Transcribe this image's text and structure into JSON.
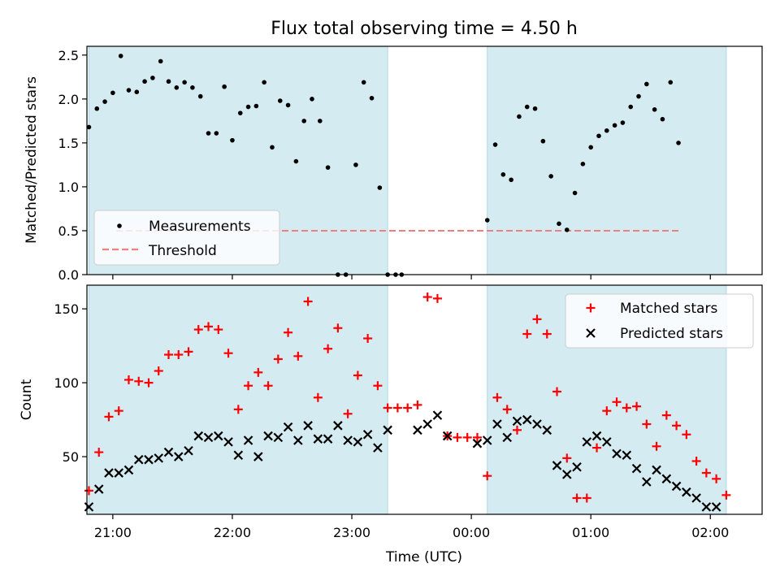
{
  "chart_data": [
    {
      "type": "scatter",
      "title": "Flux total observing time = 4.50 h",
      "xlabel": "",
      "ylabel": "Matched/Predicted stars",
      "ylim": [
        0,
        2.6
      ],
      "xlim": [
        "20:47",
        "02:26"
      ],
      "y_ticks": [
        "0.0",
        "0.5",
        "1.0",
        "1.5",
        "2.0",
        "2.5"
      ],
      "legend_position": "bottom-left",
      "shaded_intervals": [
        [
          "20:48",
          "23:18"
        ],
        [
          "00:08",
          "02:08"
        ]
      ],
      "shade_color": "#add8e6",
      "threshold": {
        "name": "Threshold",
        "value": 0.5,
        "color": "#f08080",
        "style": "dashed"
      },
      "series": [
        {
          "name": "Measurements",
          "marker": "dot",
          "color": "#000000",
          "points": [
            [
              "20:48",
              1.68
            ],
            [
              "20:52",
              1.89
            ],
            [
              "20:56",
              1.97
            ],
            [
              "21:00",
              2.07
            ],
            [
              "21:04",
              2.49
            ],
            [
              "21:08",
              2.1
            ],
            [
              "21:12",
              2.08
            ],
            [
              "21:16",
              2.2
            ],
            [
              "21:20",
              2.24
            ],
            [
              "21:24",
              2.43
            ],
            [
              "21:28",
              2.2
            ],
            [
              "21:32",
              2.13
            ],
            [
              "21:36",
              2.19
            ],
            [
              "21:40",
              2.13
            ],
            [
              "21:44",
              2.03
            ],
            [
              "21:48",
              1.61
            ],
            [
              "21:52",
              1.61
            ],
            [
              "21:56",
              2.14
            ],
            [
              "22:00",
              1.53
            ],
            [
              "22:04",
              1.84
            ],
            [
              "22:08",
              1.91
            ],
            [
              "22:12",
              1.92
            ],
            [
              "22:16",
              2.19
            ],
            [
              "22:20",
              1.45
            ],
            [
              "22:24",
              1.98
            ],
            [
              "22:28",
              1.93
            ],
            [
              "22:32",
              1.29
            ],
            [
              "22:36",
              1.75
            ],
            [
              "22:40",
              2.0
            ],
            [
              "22:44",
              1.75
            ],
            [
              "22:48",
              1.22
            ],
            [
              "22:53",
              0.0
            ],
            [
              "22:57",
              0.0
            ],
            [
              "23:02",
              1.25
            ],
            [
              "23:06",
              2.19
            ],
            [
              "23:10",
              2.01
            ],
            [
              "23:14",
              0.99
            ],
            [
              "23:18",
              0.0
            ],
            [
              "23:22",
              0.0
            ],
            [
              "23:25",
              0.0
            ],
            [
              "00:08",
              0.62
            ],
            [
              "00:12",
              1.48
            ],
            [
              "00:16",
              1.14
            ],
            [
              "00:20",
              1.08
            ],
            [
              "00:24",
              1.8
            ],
            [
              "00:28",
              1.91
            ],
            [
              "00:32",
              1.89
            ],
            [
              "00:36",
              1.52
            ],
            [
              "00:40",
              1.12
            ],
            [
              "00:44",
              0.58
            ],
            [
              "00:48",
              0.51
            ],
            [
              "00:52",
              0.93
            ],
            [
              "00:56",
              1.26
            ],
            [
              "01:00",
              1.45
            ],
            [
              "01:04",
              1.58
            ],
            [
              "01:08",
              1.64
            ],
            [
              "01:12",
              1.7
            ],
            [
              "01:16",
              1.73
            ],
            [
              "01:20",
              1.91
            ],
            [
              "01:24",
              2.03
            ],
            [
              "01:28",
              2.17
            ],
            [
              "01:32",
              1.88
            ],
            [
              "01:36",
              1.77
            ],
            [
              "01:40",
              2.19
            ],
            [
              "01:44",
              1.5
            ]
          ]
        }
      ]
    },
    {
      "type": "scatter",
      "title": "",
      "xlabel": "Time (UTC)",
      "ylabel": "Count",
      "ylim": [
        11,
        166
      ],
      "xlim": [
        "20:47",
        "02:26"
      ],
      "x_ticks": [
        "21:00",
        "22:00",
        "23:00",
        "00:00",
        "01:00",
        "02:00"
      ],
      "y_ticks": [
        "50",
        "100",
        "150"
      ],
      "legend_position": "top-right",
      "shaded_intervals": [
        [
          "20:48",
          "23:18"
        ],
        [
          "00:08",
          "02:08"
        ]
      ],
      "shade_color": "#add8e6",
      "series": [
        {
          "name": "Matched stars",
          "marker": "plus",
          "color": "#ff0000",
          "points": [
            [
              "20:48",
              27
            ],
            [
              "20:53",
              53
            ],
            [
              "20:58",
              77
            ],
            [
              "21:03",
              81
            ],
            [
              "21:08",
              102
            ],
            [
              "21:13",
              101
            ],
            [
              "21:18",
              100
            ],
            [
              "21:23",
              108
            ],
            [
              "21:28",
              119
            ],
            [
              "21:33",
              119
            ],
            [
              "21:38",
              121
            ],
            [
              "21:43",
              136
            ],
            [
              "21:48",
              138
            ],
            [
              "21:53",
              136
            ],
            [
              "21:58",
              120
            ],
            [
              "22:03",
              82
            ],
            [
              "22:08",
              98
            ],
            [
              "22:13",
              107
            ],
            [
              "22:18",
              98
            ],
            [
              "22:23",
              116
            ],
            [
              "22:28",
              134
            ],
            [
              "22:33",
              118
            ],
            [
              "22:38",
              155
            ],
            [
              "22:43",
              90
            ],
            [
              "22:48",
              123
            ],
            [
              "22:53",
              137
            ],
            [
              "22:58",
              79
            ],
            [
              "23:03",
              105
            ],
            [
              "23:08",
              130
            ],
            [
              "23:13",
              98
            ],
            [
              "23:18",
              83
            ],
            [
              "23:23",
              83
            ],
            [
              "23:28",
              83
            ],
            [
              "23:33",
              85
            ],
            [
              "23:38",
              158
            ],
            [
              "23:43",
              157
            ],
            [
              "23:48",
              64
            ],
            [
              "23:53",
              63
            ],
            [
              "23:58",
              63
            ],
            [
              "00:03",
              63
            ],
            [
              "00:08",
              37
            ],
            [
              "00:13",
              90
            ],
            [
              "00:18",
              82
            ],
            [
              "00:23",
              68
            ],
            [
              "00:28",
              133
            ],
            [
              "00:33",
              143
            ],
            [
              "00:38",
              133
            ],
            [
              "00:43",
              94
            ],
            [
              "00:48",
              49
            ],
            [
              "00:53",
              22
            ],
            [
              "00:58",
              22
            ],
            [
              "01:03",
              56
            ],
            [
              "01:08",
              81
            ],
            [
              "01:13",
              87
            ],
            [
              "01:18",
              83
            ],
            [
              "01:23",
              84
            ],
            [
              "01:28",
              72
            ],
            [
              "01:33",
              57
            ],
            [
              "01:38",
              78
            ],
            [
              "01:43",
              71
            ],
            [
              "01:48",
              65
            ],
            [
              "01:53",
              47
            ],
            [
              "01:58",
              39
            ],
            [
              "02:03",
              35
            ],
            [
              "02:08",
              24
            ]
          ]
        },
        {
          "name": "Predicted stars",
          "marker": "x",
          "color": "#000000",
          "points": [
            [
              "20:48",
              16
            ],
            [
              "20:53",
              28
            ],
            [
              "20:58",
              39
            ],
            [
              "21:03",
              39
            ],
            [
              "21:08",
              41
            ],
            [
              "21:13",
              48
            ],
            [
              "21:18",
              48
            ],
            [
              "21:23",
              49
            ],
            [
              "21:28",
              53
            ],
            [
              "21:33",
              50
            ],
            [
              "21:38",
              54
            ],
            [
              "21:43",
              64
            ],
            [
              "21:48",
              63
            ],
            [
              "21:53",
              64
            ],
            [
              "21:58",
              60
            ],
            [
              "22:03",
              51
            ],
            [
              "22:08",
              61
            ],
            [
              "22:13",
              50
            ],
            [
              "22:18",
              64
            ],
            [
              "22:23",
              63
            ],
            [
              "22:28",
              70
            ],
            [
              "22:33",
              61
            ],
            [
              "22:38",
              71
            ],
            [
              "22:43",
              62
            ],
            [
              "22:48",
              62
            ],
            [
              "22:53",
              71
            ],
            [
              "22:58",
              61
            ],
            [
              "23:03",
              60
            ],
            [
              "23:08",
              65
            ],
            [
              "23:13",
              56
            ],
            [
              "23:18",
              68
            ],
            [
              "23:33",
              68
            ],
            [
              "23:38",
              72
            ],
            [
              "23:43",
              78
            ],
            [
              "23:48",
              64
            ],
            [
              "00:03",
              59
            ],
            [
              "00:08",
              61
            ],
            [
              "00:13",
              72
            ],
            [
              "00:18",
              63
            ],
            [
              "00:23",
              74
            ],
            [
              "00:28",
              75
            ],
            [
              "00:33",
              72
            ],
            [
              "00:38",
              68
            ],
            [
              "00:43",
              44
            ],
            [
              "00:48",
              38
            ],
            [
              "00:53",
              43
            ],
            [
              "00:58",
              60
            ],
            [
              "01:03",
              64
            ],
            [
              "01:08",
              60
            ],
            [
              "01:13",
              52
            ],
            [
              "01:18",
              51
            ],
            [
              "01:23",
              42
            ],
            [
              "01:28",
              33
            ],
            [
              "01:33",
              41
            ],
            [
              "01:38",
              35
            ],
            [
              "01:43",
              30
            ],
            [
              "01:48",
              26
            ],
            [
              "01:53",
              22
            ],
            [
              "01:58",
              16
            ],
            [
              "02:03",
              16
            ]
          ]
        }
      ]
    }
  ]
}
